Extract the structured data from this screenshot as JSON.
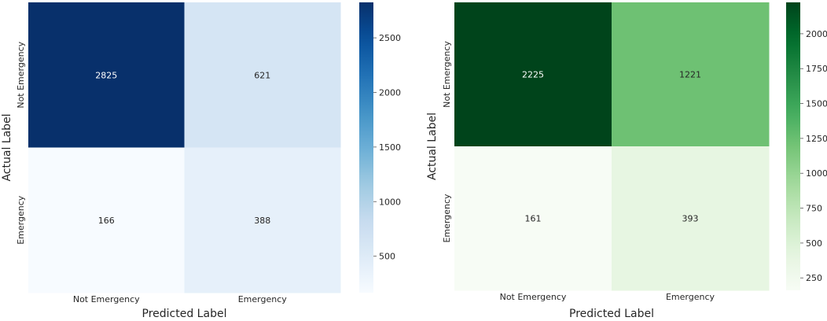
{
  "chart_data": [
    {
      "type": "heatmap",
      "title": "",
      "xlabel": "Predicted Label",
      "ylabel": "Actual Label",
      "x_categories": [
        "Not Emergency",
        "Emergency"
      ],
      "y_categories": [
        "Not Emergency",
        "Emergency"
      ],
      "values": [
        [
          2825,
          621
        ],
        [
          166,
          388
        ]
      ],
      "colormap": "Blues",
      "color_low": "#f7fbff",
      "color_high": "#08306b",
      "colorbar_range": [
        166,
        2825
      ],
      "colorbar_ticks": [
        500,
        1000,
        1500,
        2000,
        2500
      ],
      "grid": false,
      "legend": "colorbar-right"
    },
    {
      "type": "heatmap",
      "title": "",
      "xlabel": "Predicted Label",
      "ylabel": "Actual Label",
      "x_categories": [
        "Not Emergency",
        "Emergency"
      ],
      "y_categories": [
        "Not Emergency",
        "Emergency"
      ],
      "values": [
        [
          2225,
          1221
        ],
        [
          161,
          393
        ]
      ],
      "colormap": "Greens",
      "color_low": "#f7fcf5",
      "color_high": "#00441b",
      "colorbar_range": [
        161,
        2225
      ],
      "colorbar_ticks": [
        250,
        500,
        750,
        1000,
        1250,
        1500,
        1750,
        2000
      ],
      "grid": false,
      "legend": "colorbar-right"
    }
  ]
}
